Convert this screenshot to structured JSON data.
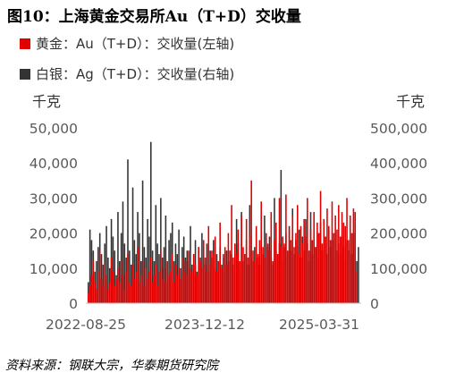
{
  "title": "图10：上海黄金交易所Au（T+D）交收量",
  "source": "资料来源：钢联大宗，华泰期货研究院",
  "chart_data": {
    "type": "bar",
    "unit_left": "千克",
    "unit_right": "千克",
    "series": [
      {
        "name": "黄金：Au（T+D）：交收量(左轴)",
        "axis": "left",
        "color": "#e00000",
        "values": [
          3000,
          5000,
          8000,
          12000,
          6000,
          4000,
          9000,
          15000,
          7000,
          5000,
          11000,
          8000,
          4000,
          6000,
          13000,
          9000,
          5000,
          7000,
          10000,
          6000,
          12000,
          8000,
          4000,
          9000,
          14000,
          6000,
          5000,
          11000,
          7000,
          9000,
          16000,
          6000,
          8000,
          12000,
          5000,
          10000,
          7000,
          9000,
          13000,
          6000,
          8000,
          11000,
          5000,
          9000,
          15000,
          7000,
          10000,
          6000,
          12000,
          8000,
          9000,
          14000,
          6000,
          11000,
          8000,
          10000,
          7000,
          13000,
          9000,
          12000,
          8000,
          15000,
          10000,
          9000,
          14000,
          11000,
          8000,
          16000,
          12000,
          10000,
          18000,
          13000,
          9000,
          22000,
          11000,
          15000,
          14000,
          19000,
          9000,
          12000,
          23000,
          10000,
          14000,
          16000,
          11000,
          20000,
          15000,
          28000,
          13000,
          17000,
          14000,
          21000,
          12000,
          25000,
          16000,
          14000,
          24000,
          13000,
          19000,
          35000,
          15000,
          12000,
          22000,
          14000,
          18000,
          29000,
          16000,
          13000,
          20000,
          17000,
          15000,
          26000,
          12000,
          18000,
          23000,
          14000,
          30000,
          16000,
          19000,
          17000,
          31000,
          15000,
          21000,
          18000,
          25000,
          16000,
          20000,
          28000,
          14000,
          22000,
          17000,
          24000,
          19000,
          30000,
          15000,
          21000,
          18000,
          26000,
          16000,
          23000,
          20000,
          32000,
          17000,
          24000,
          19000,
          27000,
          22000,
          18000,
          29000,
          20000,
          25000,
          21000,
          28000,
          19000,
          26000,
          23000,
          22000,
          30000,
          18000,
          25000,
          20000,
          27000,
          26000,
          9000
        ]
      },
      {
        "name": "白银：Ag（T+D）：交收量(右轴)",
        "axis": "right",
        "color": "#333333",
        "values": [
          60000,
          210000,
          180000,
          150000,
          90000,
          120000,
          160000,
          200000,
          140000,
          110000,
          170000,
          220000,
          130000,
          100000,
          240000,
          190000,
          150000,
          80000,
          260000,
          120000,
          200000,
          290000,
          170000,
          130000,
          410000,
          150000,
          110000,
          330000,
          180000,
          140000,
          260000,
          200000,
          120000,
          350000,
          160000,
          130000,
          240000,
          190000,
          460000,
          150000,
          120000,
          280000,
          170000,
          140000,
          300000,
          130000,
          160000,
          250000,
          110000,
          180000,
          200000,
          230000,
          120000,
          170000,
          140000,
          210000,
          100000,
          160000,
          190000,
          130000,
          150000,
          120000,
          220000,
          110000,
          140000,
          180000,
          90000,
          160000,
          130000,
          200000,
          120000,
          110000,
          170000,
          90000,
          150000,
          130000,
          180000,
          100000,
          140000,
          120000,
          160000,
          110000,
          130000,
          90000,
          150000,
          120000,
          100000,
          140000,
          110000,
          130000,
          240000,
          170000,
          100000,
          260000,
          120000,
          140000,
          180000,
          110000,
          280000,
          150000,
          120000,
          160000,
          200000,
          130000,
          110000,
          170000,
          140000,
          250000,
          120000,
          160000,
          190000,
          130000,
          110000,
          300000,
          150000,
          140000,
          170000,
          380000,
          120000,
          160000,
          200000,
          130000,
          220000,
          150000,
          270000,
          140000,
          180000,
          160000,
          210000,
          130000,
          190000,
          150000,
          240000,
          170000,
          120000,
          260000,
          140000,
          180000,
          160000,
          200000,
          130000,
          230000,
          150000,
          170000,
          190000,
          140000,
          210000,
          160000,
          180000,
          130000,
          200000,
          150000,
          170000,
          140000,
          190000,
          160000,
          120000,
          180000,
          150000,
          170000,
          140000,
          200000,
          160000,
          120000,
          160000
        ]
      }
    ],
    "x_tick_labels": [
      "2022-08-25",
      "2023-12-12",
      "2025-03-31"
    ],
    "y_left": {
      "min": 0,
      "max": 50000,
      "ticks": [
        "0",
        "10,000",
        "20,000",
        "30,000",
        "40,000",
        "50,000"
      ]
    },
    "y_right": {
      "min": 0,
      "max": 500000,
      "ticks": [
        "0",
        "100,000",
        "200,000",
        "300,000",
        "400,000",
        "500,000"
      ]
    },
    "legend_placement": "top-left",
    "grid": false
  }
}
